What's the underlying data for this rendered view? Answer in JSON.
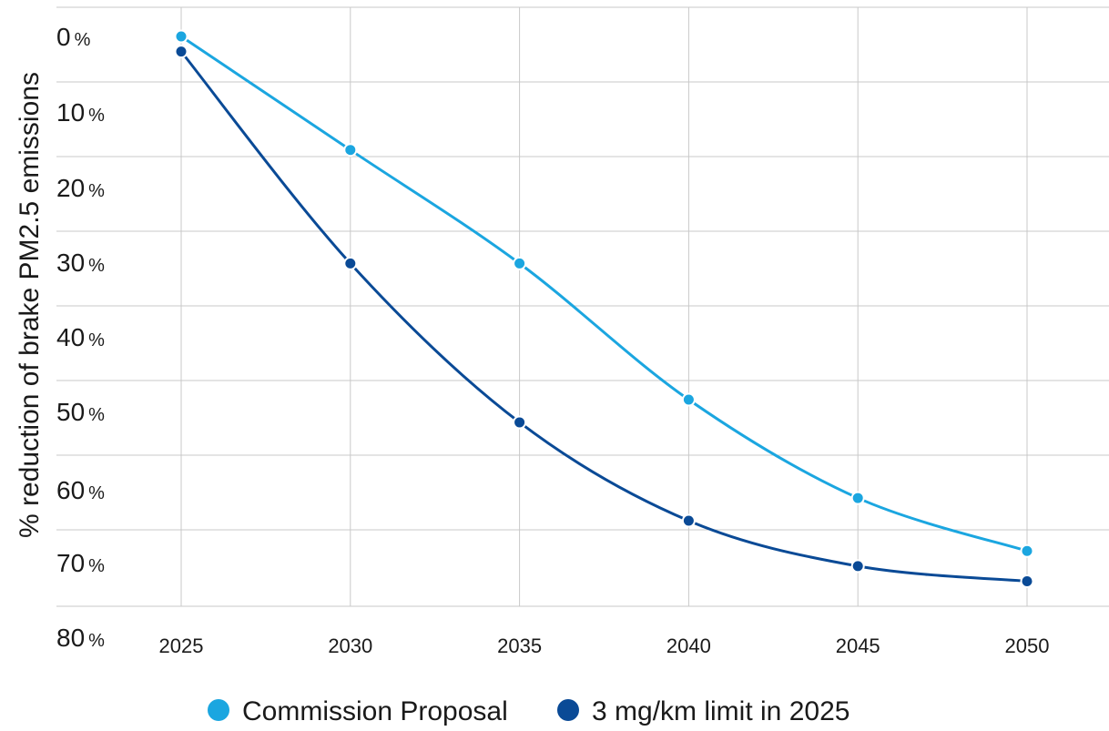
{
  "chart_data": {
    "type": "line",
    "title": "",
    "xlabel": "",
    "ylabel": "% reduction of brake PM2.5 emissions",
    "x": [
      2025,
      2030,
      2035,
      2040,
      2045,
      2050
    ],
    "x_tick_labels": [
      "2025",
      "2030",
      "2035",
      "2040",
      "2045",
      "2050"
    ],
    "y_tick_values": [
      0,
      10,
      20,
      30,
      40,
      50,
      60,
      70,
      80
    ],
    "y_tick_numbers": [
      "0",
      "10",
      "20",
      "30",
      "40",
      "50",
      "60",
      "70",
      "80"
    ],
    "y_tick_unit": "%",
    "ylim": [
      0,
      80
    ],
    "y_inverted": true,
    "grid": true,
    "legend_position": "bottom",
    "series": [
      {
        "name": "Commission Proposal",
        "color": "#1ba6e0",
        "values": [
          0,
          15,
          30,
          48,
          61,
          68
        ]
      },
      {
        "name": "3 mg/km limit in 2025",
        "color": "#0a4a96",
        "values": [
          2,
          30,
          51,
          64,
          70,
          72
        ]
      }
    ]
  }
}
